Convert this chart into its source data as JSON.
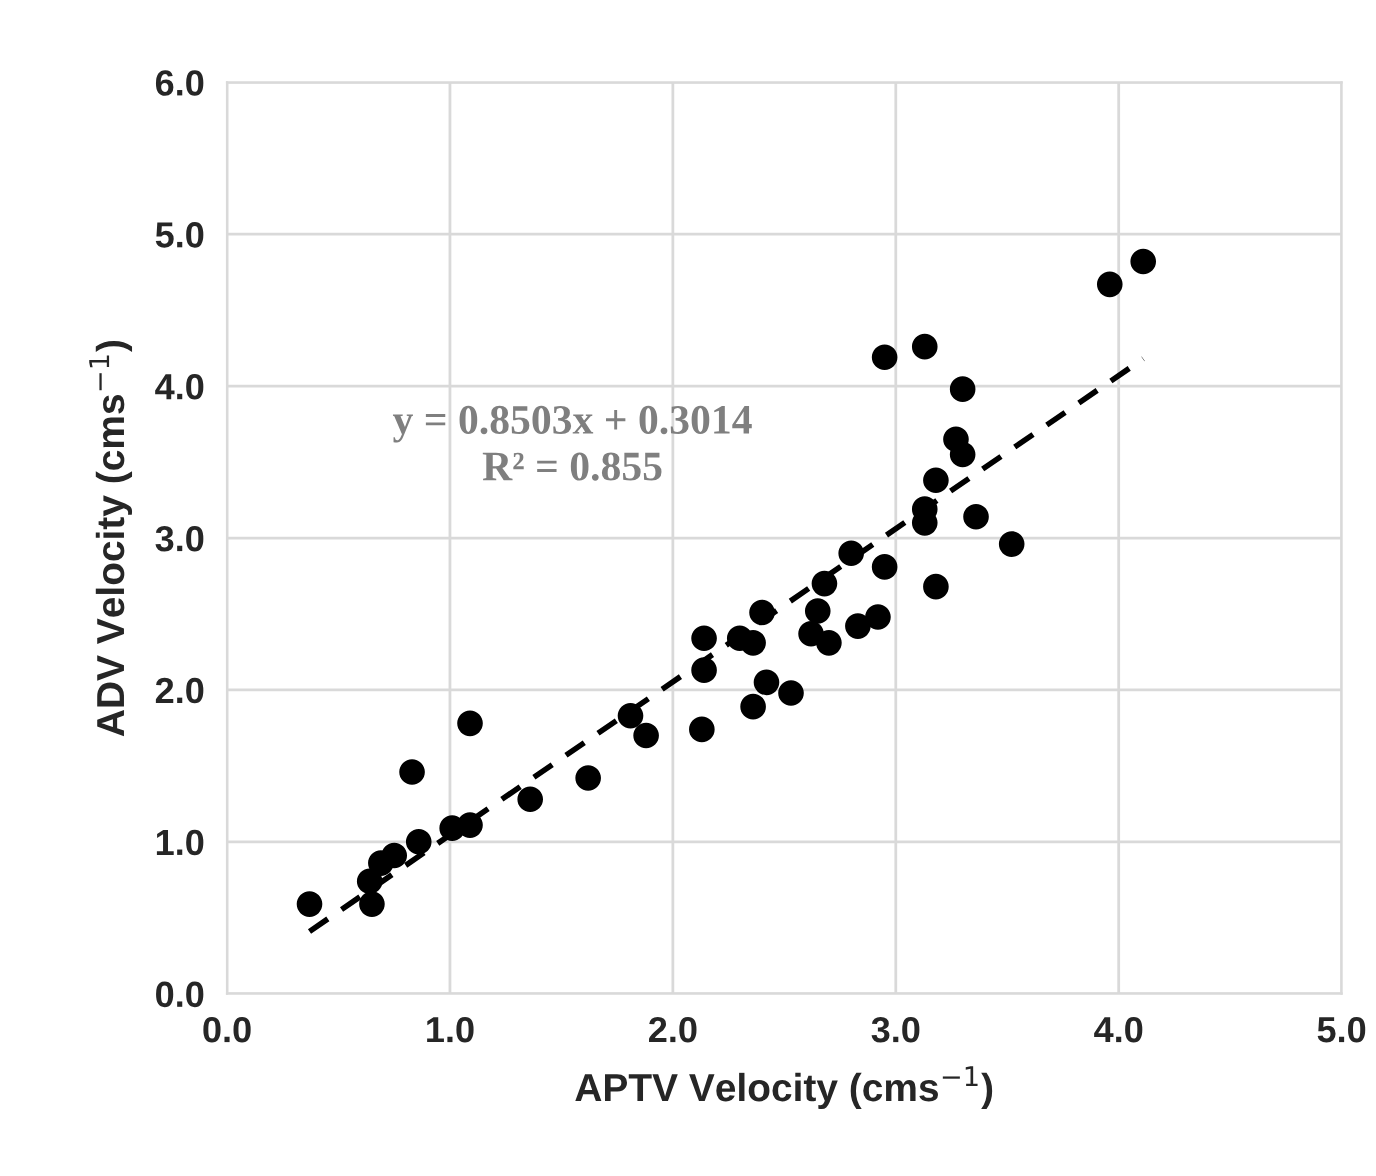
{
  "chart_data": {
    "type": "scatter",
    "xlabel": "APTV Velocity (cms$^{−1}$)",
    "ylabel": "ADV Velocity (cms$^{−1}$)",
    "xlim": [
      0,
      5
    ],
    "ylim": [
      0,
      6
    ],
    "xticks": [
      {
        "value": 0,
        "label": "0.0"
      },
      {
        "value": 1,
        "label": "1.0"
      },
      {
        "value": 2,
        "label": "2.0"
      },
      {
        "value": 3,
        "label": "3.0"
      },
      {
        "value": 4,
        "label": "4.0"
      },
      {
        "value": 5,
        "label": "5.0"
      }
    ],
    "yticks": [
      {
        "value": 0,
        "label": "0.0"
      },
      {
        "value": 1,
        "label": "1.0"
      },
      {
        "value": 2,
        "label": "2.0"
      },
      {
        "value": 3,
        "label": "3.0"
      },
      {
        "value": 4,
        "label": "4.0"
      },
      {
        "value": 5,
        "label": "5.0"
      },
      {
        "value": 6,
        "label": "6.0"
      }
    ],
    "grid": true,
    "marker": "circle",
    "series": [
      {
        "color": "#000000",
        "x": [
          0.37,
          0.65,
          0.64,
          0.69,
          0.75,
          0.86,
          1.01,
          1.09,
          0.83,
          1.09,
          1.36,
          1.62,
          1.81,
          1.88,
          2.13,
          2.14,
          2.14,
          2.3,
          2.36,
          2.36,
          2.42,
          2.53,
          2.4,
          2.65,
          2.68,
          2.62,
          2.7,
          2.83,
          2.92,
          2.8,
          2.95,
          2.95,
          3.13,
          3.3,
          3.27,
          3.3,
          3.18,
          3.13,
          3.13,
          3.36,
          3.52,
          3.18,
          3.96,
          4.11
        ],
        "values": [
          0.59,
          0.59,
          0.74,
          0.86,
          0.91,
          1.0,
          1.09,
          1.11,
          1.46,
          1.78,
          1.28,
          1.42,
          1.83,
          1.7,
          1.74,
          2.13,
          2.34,
          2.34,
          2.31,
          1.89,
          2.05,
          1.98,
          2.51,
          2.52,
          2.7,
          2.37,
          2.31,
          2.42,
          2.48,
          2.9,
          2.81,
          4.19,
          4.26,
          3.98,
          3.65,
          3.55,
          3.38,
          3.19,
          3.1,
          3.14,
          2.96,
          2.68,
          4.67,
          4.82
        ]
      },
      {
        "type": "line",
        "color": "#000000",
        "line_style": "dashed",
        "marker": "none",
        "x": [
          0.37,
          4.11
        ],
        "values": [
          0.41,
          4.18
        ]
      }
    ],
    "annotations": [
      "y = 0.8503x + 0.3014\nR² = 0.855"
    ]
  }
}
